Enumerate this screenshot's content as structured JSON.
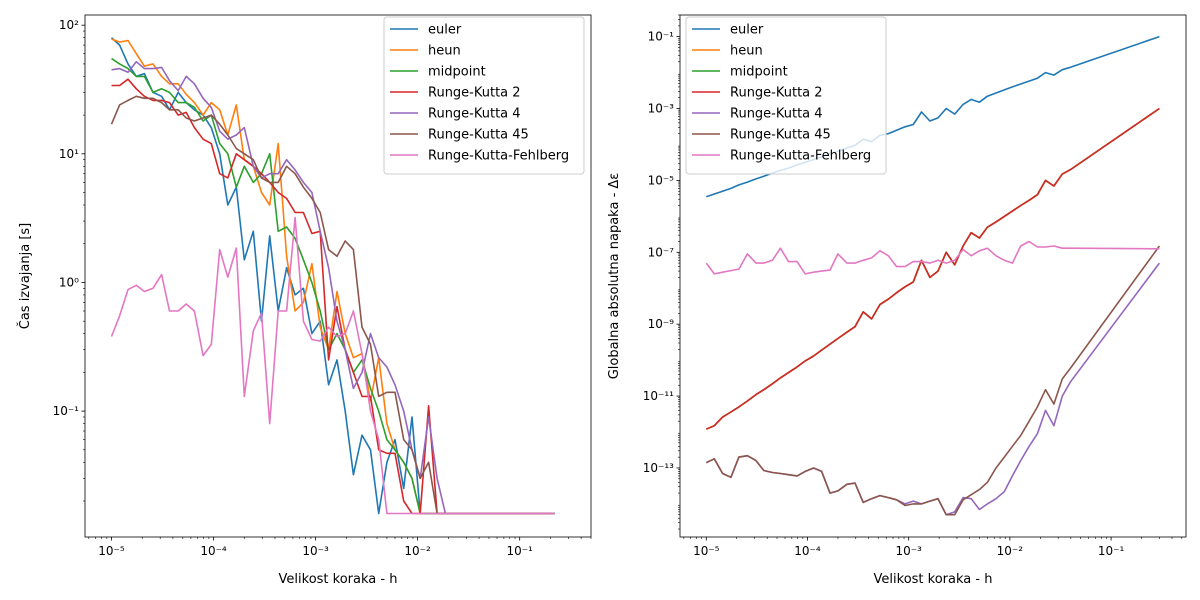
{
  "chart_data": [
    {
      "type": "line",
      "xscale": "log",
      "yscale": "log",
      "xlabel": "Velikost koraka - h",
      "ylabel": "Čas izvajanja [s]",
      "xlim": [
        5.5e-06,
        0.5
      ],
      "ylim": [
        0.0105,
        120
      ],
      "xticks": [
        "1e-05",
        "1e-04",
        "1e-03",
        "1e-02",
        "1e-01"
      ],
      "yticks": [
        "1e-01",
        "1e+00",
        "1e+01",
        "1e+02"
      ],
      "legend_position": "top-right",
      "x": [
        1e-05,
        1.2e-05,
        1.45e-05,
        1.75e-05,
        2.1e-05,
        2.55e-05,
        3.1e-05,
        3.7e-05,
        4.5e-05,
        5.4e-05,
        6.5e-05,
        7.9e-05,
        9.5e-05,
        0.000115,
        0.000138,
        0.000167,
        0.0002,
        0.000245,
        0.000295,
        0.000355,
        0.00043,
        0.00052,
        0.00063,
        0.00076,
        0.00092,
        0.00111,
        0.00134,
        0.00162,
        0.00195,
        0.00235,
        0.00285,
        0.00345,
        0.00415,
        0.005,
        0.006,
        0.0073,
        0.0088,
        0.0106,
        0.0128,
        0.0155,
        0.0187,
        0.0225,
        0.0272,
        0.033,
        0.0397,
        0.048,
        0.058,
        0.07,
        0.085,
        0.103,
        0.124,
        0.15,
        0.18,
        0.22
      ],
      "series": [
        {
          "name": "euler",
          "color": "#1f77b4",
          "values": [
            80,
            70,
            50,
            40,
            42,
            30,
            28,
            22,
            30,
            25,
            22,
            20,
            16,
            10,
            4,
            5.5,
            1.5,
            2.5,
            0.5,
            2.3,
            0.6,
            1.3,
            0.8,
            0.9,
            0.4,
            0.5,
            0.16,
            0.25,
            0.1,
            0.032,
            0.065,
            0.05,
            0.016,
            0.04,
            0.06,
            0.025,
            0.09,
            0.016,
            0.016,
            0.016,
            0.016,
            0.016,
            0.016,
            0.016,
            0.016,
            0.016,
            0.016,
            0.016,
            0.016,
            0.016,
            0.016,
            0.016,
            0.016,
            0.016
          ]
        },
        {
          "name": "heun",
          "color": "#ff7f0e",
          "values": [
            78,
            74,
            76,
            60,
            48,
            50,
            40,
            35,
            35,
            29,
            25,
            20,
            25,
            22,
            14,
            24,
            9,
            8,
            5,
            4,
            12,
            1.6,
            0.6,
            0.7,
            1.4,
            0.45,
            0.3,
            0.85,
            0.4,
            0.26,
            0.28,
            0.12,
            0.26,
            0.08,
            0.05,
            0.04,
            0.03,
            0.016,
            0.016,
            0.016,
            0.016,
            0.016,
            0.016,
            0.016,
            0.016,
            0.016,
            0.016,
            0.016,
            0.016,
            0.016,
            0.016,
            0.016,
            0.016,
            0.016
          ]
        },
        {
          "name": "midpoint",
          "color": "#2ca02c",
          "values": [
            55,
            50,
            46,
            40,
            40,
            30,
            32,
            30,
            25,
            25,
            23,
            18,
            20,
            12,
            10,
            5.5,
            8,
            6,
            7,
            10,
            2.5,
            2.7,
            2.2,
            1.5,
            1,
            0.6,
            0.3,
            0.4,
            0.3,
            0.2,
            0.25,
            0.15,
            0.1,
            0.06,
            0.05,
            0.04,
            0.03,
            0.016,
            0.016,
            0.016,
            0.016,
            0.016,
            0.016,
            0.016,
            0.016,
            0.016,
            0.016,
            0.016,
            0.016,
            0.016,
            0.016,
            0.016,
            0.016,
            0.016
          ]
        },
        {
          "name": "Runge-Kutta 2",
          "color": "#d62728",
          "values": [
            34,
            34,
            38,
            32,
            28,
            26,
            26,
            25,
            20,
            21,
            16,
            13,
            12,
            7,
            6.5,
            10,
            9,
            8,
            7,
            6,
            5,
            4.5,
            3.5,
            3.5,
            2.4,
            2.5,
            0.25,
            0.65,
            0.3,
            0.2,
            0.13,
            0.13,
            0.05,
            0.047,
            0.047,
            0.02,
            0.016,
            0.016,
            0.11,
            0.016,
            0.016,
            0.016,
            0.016,
            0.016,
            0.016,
            0.016,
            0.016,
            0.016,
            0.016,
            0.016,
            0.016,
            0.016,
            0.016,
            0.016
          ]
        },
        {
          "name": "Runge-Kutta 4",
          "color": "#9467bd",
          "values": [
            45,
            46,
            43,
            52,
            46,
            46,
            47,
            37,
            31,
            40,
            35,
            27,
            23,
            15,
            13,
            14,
            16,
            8,
            6.5,
            7,
            7,
            9,
            7.5,
            6,
            5,
            2.5,
            1.3,
            0.5,
            0.3,
            0.15,
            0.2,
            0.4,
            0.26,
            0.22,
            0.16,
            0.1,
            0.05,
            0.03,
            0.09,
            0.03,
            0.016,
            0.016,
            0.016,
            0.016,
            0.016,
            0.016,
            0.016,
            0.016,
            0.016,
            0.016,
            0.016,
            0.016,
            0.016,
            0.016
          ]
        },
        {
          "name": "Runge-Kutta 45",
          "color": "#8c564b",
          "values": [
            17,
            24,
            26,
            28,
            27,
            27,
            25,
            22,
            22,
            19,
            18,
            19,
            20,
            17,
            14,
            11,
            10,
            9,
            6.5,
            6,
            6,
            8,
            7,
            5.5,
            4.5,
            3.5,
            1.8,
            1.6,
            2.1,
            1.8,
            0.45,
            0.33,
            0.13,
            0.14,
            0.14,
            0.06,
            0.05,
            0.03,
            0.04,
            0.016,
            0.016,
            0.016,
            0.016,
            0.016,
            0.016,
            0.016,
            0.016,
            0.016,
            0.016,
            0.016,
            0.016,
            0.016,
            0.016,
            0.016
          ]
        },
        {
          "name": "Runge-Kutta-Fehlberg",
          "color": "#e377c2",
          "values": [
            0.38,
            0.55,
            0.88,
            0.95,
            0.85,
            0.9,
            1.15,
            0.6,
            0.6,
            0.68,
            0.6,
            0.27,
            0.33,
            1.8,
            1.1,
            1.85,
            0.13,
            0.42,
            0.58,
            0.08,
            0.6,
            0.6,
            3.2,
            0.5,
            0.36,
            0.35,
            0.45,
            0.38,
            0.4,
            0.6,
            0.28,
            0.1,
            0.06,
            0.016,
            0.016,
            0.016,
            0.016,
            0.016,
            0.016,
            0.016,
            0.016,
            0.016,
            0.016,
            0.016,
            0.016,
            0.016,
            0.016,
            0.016,
            0.016,
            0.016,
            0.016,
            0.016,
            0.016,
            0.016
          ]
        }
      ]
    },
    {
      "type": "line",
      "xscale": "log",
      "yscale": "log",
      "xlabel": "Velikost koraka - h",
      "ylabel": "Globalna absolutna napaka - Δε",
      "xlim": [
        5.5e-06,
        0.55
      ],
      "ylim": [
        1.2e-15,
        0.4
      ],
      "xticks": [
        "1e-05",
        "1e-04",
        "1e-03",
        "1e-02",
        "1e-01"
      ],
      "yticks": [
        "1e-13",
        "1e-11",
        "1e-09",
        "1e-07",
        "1e-05",
        "1e-03",
        "1e-01"
      ],
      "legend_position": "top-left",
      "x": [
        1e-05,
        1.2e-05,
        1.45e-05,
        1.75e-05,
        2.1e-05,
        2.55e-05,
        3.1e-05,
        3.7e-05,
        4.5e-05,
        5.4e-05,
        6.5e-05,
        7.9e-05,
        9.5e-05,
        0.000115,
        0.000138,
        0.000167,
        0.0002,
        0.000245,
        0.000295,
        0.000355,
        0.00043,
        0.00052,
        0.00063,
        0.00076,
        0.00092,
        0.00111,
        0.00134,
        0.00162,
        0.00195,
        0.00235,
        0.00285,
        0.00345,
        0.00415,
        0.005,
        0.006,
        0.0073,
        0.0088,
        0.0106,
        0.0128,
        0.0155,
        0.0187,
        0.0225,
        0.0272,
        0.033,
        0.0397,
        0.3
      ],
      "series": [
        {
          "name": "euler",
          "color": "#1f77b4",
          "values": [
            3.5e-06,
            4.2e-06,
            5e-06,
            6e-06,
            7.5e-06,
            9e-06,
            1.1e-05,
            1.3e-05,
            1.6e-05,
            1.9e-05,
            2.2e-05,
            2.7e-05,
            3.2e-05,
            3.8e-05,
            4.6e-05,
            5.5e-05,
            6.5e-05,
            8e-05,
            9.5e-05,
            0.00014,
            0.00012,
            0.00018,
            0.0002,
            0.00025,
            0.00031,
            0.00036,
            0.0008,
            0.00045,
            0.00055,
            0.001,
            0.0007,
            0.0013,
            0.0018,
            0.0015,
            0.0022,
            0.0027,
            0.0033,
            0.004,
            0.0048,
            0.0058,
            0.007,
            0.01,
            0.0085,
            0.012,
            0.014,
            0.1
          ]
        },
        {
          "name": "heun",
          "color": "#ff7f0e",
          "values": [
            1.2e-12,
            1.5e-12,
            2.6e-12,
            3.6e-12,
            5e-12,
            7.3e-12,
            1.1e-11,
            1.5e-11,
            2.2e-11,
            3.2e-11,
            4.5e-11,
            6.5e-11,
            9.5e-11,
            1.3e-10,
            1.9e-10,
            2.8e-10,
            4e-10,
            6e-10,
            8.5e-10,
            2.2e-09,
            1.4e-09,
            3.5e-09,
            5e-09,
            7.5e-09,
            1.1e-08,
            1.5e-08,
            6e-08,
            2e-08,
            3e-08,
            1e-07,
            4.5e-08,
            1.5e-07,
            3.5e-07,
            2.5e-07,
            5e-07,
            7e-07,
            1e-06,
            1.4e-06,
            2e-06,
            2.8e-06,
            4e-06,
            1e-05,
            7e-06,
            1.5e-05,
            2e-05,
            0.001
          ]
        },
        {
          "name": "midpoint",
          "color": "#2ca02c",
          "values": [
            1.2e-12,
            1.5e-12,
            2.6e-12,
            3.6e-12,
            5e-12,
            7.3e-12,
            1.1e-11,
            1.5e-11,
            2.2e-11,
            3.2e-11,
            4.5e-11,
            6.5e-11,
            9.5e-11,
            1.3e-10,
            1.9e-10,
            2.8e-10,
            4e-10,
            6e-10,
            8.5e-10,
            2.2e-09,
            1.4e-09,
            3.5e-09,
            5e-09,
            7.5e-09,
            1.1e-08,
            1.5e-08,
            6e-08,
            2e-08,
            3e-08,
            1e-07,
            4.5e-08,
            1.5e-07,
            3.5e-07,
            2.5e-07,
            5e-07,
            7e-07,
            1e-06,
            1.4e-06,
            2e-06,
            2.8e-06,
            4e-06,
            1e-05,
            7e-06,
            1.5e-05,
            2e-05,
            0.001
          ]
        },
        {
          "name": "Runge-Kutta 2",
          "color": "#d62728",
          "values": [
            1.2e-12,
            1.5e-12,
            2.6e-12,
            3.6e-12,
            5e-12,
            7.3e-12,
            1.1e-11,
            1.5e-11,
            2.2e-11,
            3.2e-11,
            4.5e-11,
            6.5e-11,
            9.5e-11,
            1.3e-10,
            1.9e-10,
            2.8e-10,
            4e-10,
            6e-10,
            8.5e-10,
            2.2e-09,
            1.4e-09,
            3.5e-09,
            5e-09,
            7.5e-09,
            1.1e-08,
            1.5e-08,
            6e-08,
            2e-08,
            3e-08,
            1e-07,
            4.5e-08,
            1.5e-07,
            3.5e-07,
            2.5e-07,
            5e-07,
            7e-07,
            1e-06,
            1.4e-06,
            2e-06,
            2.8e-06,
            4e-06,
            1e-05,
            7e-06,
            1.5e-05,
            2e-05,
            0.001
          ]
        },
        {
          "name": "Runge-Kutta 4",
          "color": "#9467bd",
          "values": [
            1.4e-13,
            1.8e-13,
            7e-14,
            5.5e-14,
            2e-13,
            2.2e-13,
            1.6e-13,
            8.5e-14,
            7.5e-14,
            7e-14,
            6.5e-14,
            6e-14,
            8e-14,
            1e-13,
            8e-14,
            2e-14,
            2.3e-14,
            3.5e-14,
            3.8e-14,
            1.1e-14,
            1.4e-14,
            1.7e-14,
            1.5e-14,
            1.3e-14,
            1e-14,
            1.2e-14,
            1e-14,
            1.2e-14,
            1.4e-14,
            5e-15,
            6e-15,
            1.5e-14,
            1.4e-14,
            7e-15,
            1e-14,
            1.4e-14,
            2.2e-14,
            6e-14,
            1.6e-13,
            4e-13,
            9e-13,
            4e-12,
            1.5e-12,
            1e-11,
            2.5e-11,
            5e-08
          ]
        },
        {
          "name": "Runge-Kutta 45",
          "color": "#8c564b",
          "values": [
            1.4e-13,
            1.8e-13,
            7e-14,
            5.5e-14,
            2e-13,
            2.2e-13,
            1.6e-13,
            8.5e-14,
            7.5e-14,
            7e-14,
            6.5e-14,
            6e-14,
            8e-14,
            1e-13,
            8e-14,
            2e-14,
            2.3e-14,
            3.5e-14,
            3.8e-14,
            1.1e-14,
            1.4e-14,
            1.7e-14,
            1.5e-14,
            1.3e-14,
            9e-15,
            1e-14,
            1e-14,
            1.2e-14,
            1.4e-14,
            5e-15,
            5e-15,
            1.3e-14,
            1.8e-14,
            2.5e-14,
            4e-14,
            1e-13,
            2e-13,
            4e-13,
            8e-13,
            2e-12,
            5e-12,
            1.5e-11,
            6e-12,
            3e-11,
            6e-11,
            1.5e-07
          ]
        },
        {
          "name": "Runge-Kutta-Fehlberg",
          "color": "#e377c2",
          "values": [
            5e-08,
            2.5e-08,
            2.8e-08,
            3.1e-08,
            3.4e-08,
            9e-08,
            5e-08,
            5e-08,
            6e-08,
            1.3e-07,
            5.5e-08,
            5.5e-08,
            2.5e-08,
            2.8e-08,
            3e-08,
            3.2e-08,
            9e-08,
            5e-08,
            5e-08,
            6e-08,
            7e-08,
            1.1e-07,
            8e-08,
            4e-08,
            4e-08,
            5.5e-08,
            5.5e-08,
            5e-08,
            6e-08,
            5e-08,
            6e-08,
            1.2e-07,
            8e-08,
            1.1e-07,
            1.3e-07,
            8e-08,
            6e-08,
            5e-08,
            1.5e-07,
            2e-07,
            1.4e-07,
            1.4e-07,
            1.5e-07,
            1.3e-07,
            1.3e-07,
            1.25e-07
          ]
        }
      ]
    }
  ]
}
